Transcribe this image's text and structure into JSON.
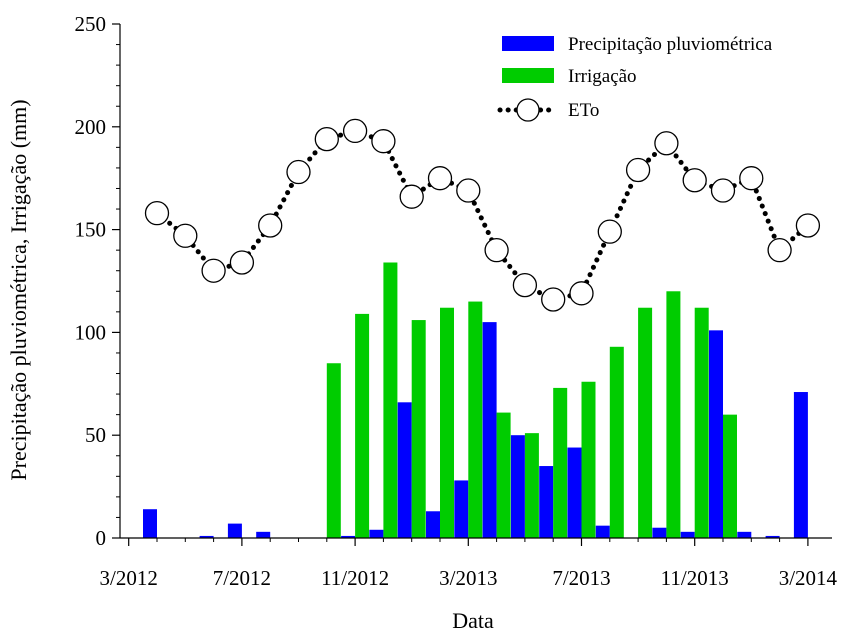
{
  "chart_data": {
    "type": "bar",
    "xlabel": "Data",
    "ylabel": "Precipitação pluviométrica, Irrigação (mm)",
    "ylim": [
      0,
      250
    ],
    "yticks": [
      "0",
      "50",
      "100",
      "150",
      "200",
      "250"
    ],
    "xticks": [
      "3/2012",
      "7/2012",
      "11/2012",
      "3/2013",
      "7/2013",
      "11/2013",
      "3/2014"
    ],
    "x": [
      "4/2012",
      "5/2012",
      "6/2012",
      "7/2012",
      "8/2012",
      "9/2012",
      "10/2012",
      "11/2012",
      "12/2012",
      "1/2013",
      "2/2013",
      "3/2013",
      "4/2013",
      "5/2013",
      "6/2013",
      "7/2013",
      "8/2013",
      "9/2013",
      "10/2013",
      "11/2013",
      "12/2013",
      "1/2014",
      "2/2014",
      "3/2014"
    ],
    "legend_position": "top-right",
    "series": [
      {
        "name": "Precipitação pluviométrica",
        "type": "bar",
        "color": "#0000ff",
        "values": [
          14,
          0,
          1,
          7,
          3,
          0,
          0,
          1,
          4,
          66,
          13,
          28,
          105,
          50,
          35,
          44,
          6,
          0,
          5,
          3,
          101,
          3,
          1,
          71
        ]
      },
      {
        "name": "Irrigação",
        "type": "bar",
        "color": "#00cc00",
        "values": [
          0,
          0,
          0,
          0,
          0,
          0,
          85,
          109,
          134,
          106,
          112,
          115,
          61,
          51,
          73,
          76,
          93,
          112,
          120,
          112,
          60,
          0,
          0,
          0
        ]
      },
      {
        "name": "ETo",
        "type": "line",
        "marker": "circle",
        "line_style": "dotted",
        "color": "#000000",
        "values": [
          158,
          147,
          130,
          134,
          152,
          178,
          194,
          198,
          193,
          166,
          175,
          169,
          140,
          123,
          116,
          119,
          149,
          179,
          192,
          174,
          169,
          175,
          140,
          152
        ]
      }
    ]
  }
}
